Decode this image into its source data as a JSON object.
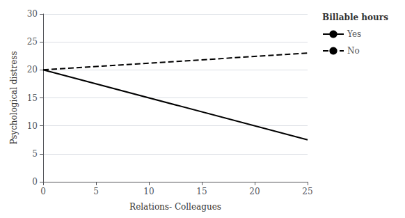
{
  "chart_data": {
    "type": "line",
    "xlabel": "Relations- Colleagues",
    "ylabel": "Psychological distress",
    "legend_title": "Billable hours",
    "x": [
      0,
      25
    ],
    "series": [
      {
        "name": "Yes",
        "color": "#000000",
        "line_style": "solid",
        "values": [
          20,
          7.5
        ]
      },
      {
        "name": "No",
        "color": "#000000",
        "line_style": "dashed",
        "values": [
          20,
          23
        ]
      }
    ],
    "xlim": [
      0,
      25
    ],
    "ylim": [
      0,
      30
    ],
    "xticks": [
      0,
      5,
      10,
      15,
      20,
      25
    ],
    "yticks": [
      0,
      5,
      10,
      15,
      20,
      25,
      30
    ],
    "grid": true,
    "legend": "right"
  }
}
